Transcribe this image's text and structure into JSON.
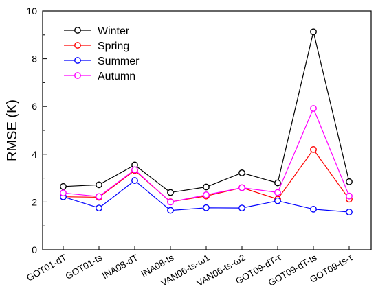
{
  "chart_data": {
    "type": "line",
    "title": "",
    "xlabel": "",
    "ylabel": "RMSE (K)",
    "ylim": [
      0,
      10
    ],
    "yticks": [
      0,
      2,
      4,
      6,
      8,
      10
    ],
    "grid": false,
    "legend_position": "top-left",
    "categories": [
      "GOT01-dT",
      "GOT01-ts",
      "INA08-dT",
      "INA08-ts",
      "VAN06-ts-ω1",
      "VAN06-ts-ω2",
      "GOT09-dT-τ",
      "GOT09-dT-ts",
      "GOT09-ts-τ"
    ],
    "series": [
      {
        "name": "Winter",
        "color": "#000000",
        "values": [
          2.65,
          2.72,
          3.55,
          2.4,
          2.63,
          3.22,
          2.8,
          9.13,
          2.85
        ]
      },
      {
        "name": "Spring",
        "color": "#ff0000",
        "values": [
          2.22,
          2.2,
          3.32,
          2.01,
          2.25,
          2.6,
          2.12,
          4.2,
          2.12
        ]
      },
      {
        "name": "Summer",
        "color": "#0000ff",
        "values": [
          2.22,
          1.75,
          2.9,
          1.65,
          1.76,
          1.75,
          2.05,
          1.7,
          1.58
        ]
      },
      {
        "name": "Autumn",
        "color": "#ff00ff",
        "values": [
          2.38,
          2.23,
          3.35,
          2.0,
          2.3,
          2.6,
          2.4,
          5.92,
          2.25
        ]
      }
    ]
  }
}
